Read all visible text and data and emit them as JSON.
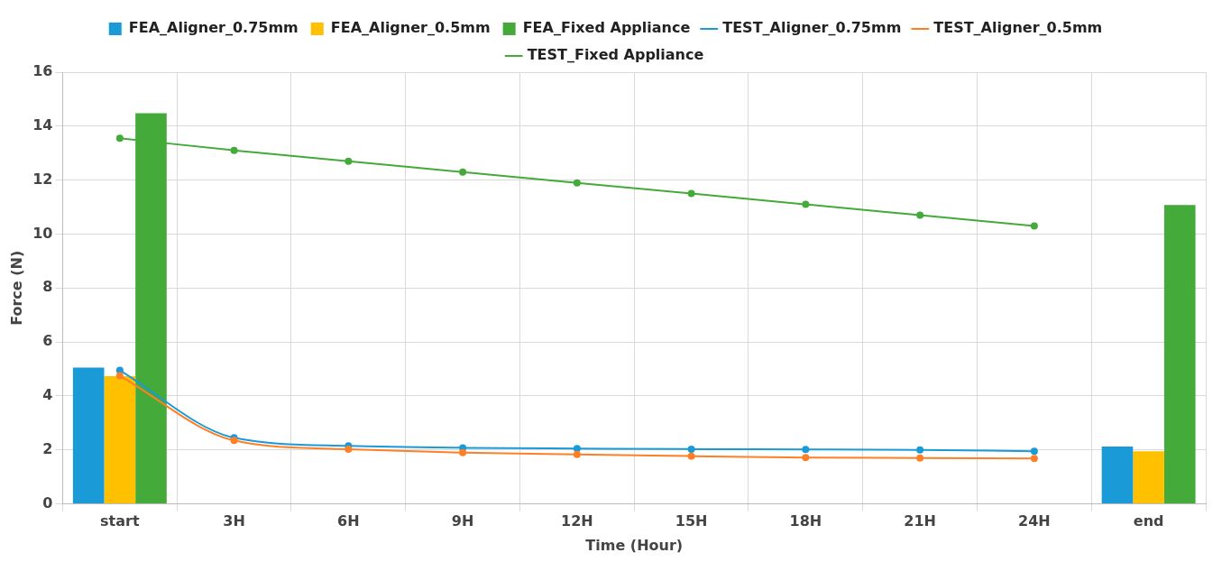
{
  "chart_data": {
    "type": "bar",
    "xlabel": "Time (Hour)",
    "ylabel": "Force (N)",
    "categories": [
      "start",
      "3H",
      "6H",
      "9H",
      "12H",
      "15H",
      "18H",
      "21H",
      "24H",
      "end"
    ],
    "series": [
      {
        "name": "FEA_Aligner_0.75mm",
        "color": "#1a9ad6",
        "values": [
          5.05,
          null,
          null,
          null,
          null,
          null,
          null,
          null,
          null,
          2.13
        ]
      },
      {
        "name": "FEA_Aligner_0.5mm",
        "color": "#ffc000",
        "values": [
          4.73,
          null,
          null,
          null,
          null,
          null,
          null,
          null,
          null,
          1.95
        ]
      },
      {
        "name": "FEA_Fixed Appliance",
        "color": "#44aa3a",
        "values": [
          14.48,
          null,
          null,
          null,
          null,
          null,
          null,
          null,
          null,
          11.08
        ]
      },
      {
        "name": "TEST_Aligner_0.75mm",
        "type": "line",
        "color": "#1a9ad6",
        "values": [
          4.95,
          2.45,
          2.15,
          2.08,
          2.05,
          2.03,
          2.02,
          2.0,
          1.95,
          null
        ]
      },
      {
        "name": "TEST_Aligner_0.5mm",
        "type": "line",
        "color": "#ff7f27",
        "values": [
          4.75,
          2.35,
          2.03,
          1.9,
          1.83,
          1.77,
          1.72,
          1.7,
          1.68,
          null
        ]
      },
      {
        "name": "TEST_Fixed Appliance",
        "type": "line",
        "color": "#44aa3a",
        "values": [
          13.55,
          13.1,
          12.7,
          12.3,
          11.9,
          11.5,
          11.1,
          10.7,
          10.3,
          null
        ]
      }
    ],
    "ylim": [
      0,
      16
    ],
    "yticks": [
      0,
      2,
      4,
      6,
      8,
      10,
      12,
      14,
      16
    ],
    "grid": true,
    "legend": "top",
    "marker": "circle",
    "line_style": "solid"
  }
}
